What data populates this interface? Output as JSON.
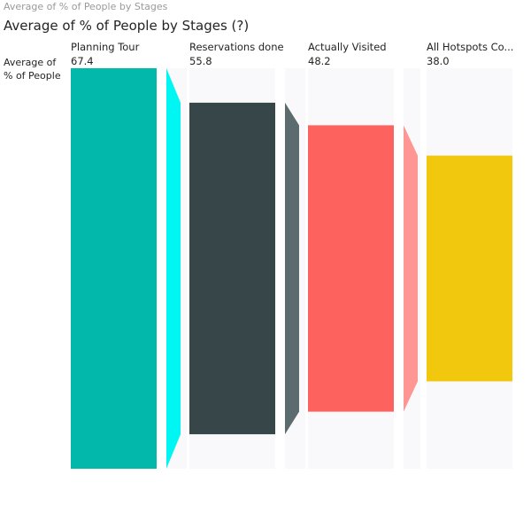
{
  "window_title": "Average of % of People by Stages",
  "chart_title": "Average of % of People by Stages (?)",
  "row_label": "Average of % of People",
  "chart_data": {
    "type": "bar",
    "variant": "funnel",
    "title": "Average of % of People by Stages (?)",
    "ylabel": "Average of % of People",
    "ylim": [
      0,
      67.4
    ],
    "categories": [
      "Planning Tour",
      "Reservations done",
      "Actually Visited",
      "All Hotspots Co..."
    ],
    "value_labels": [
      "67.4",
      "55.8",
      "48.2",
      "38.0"
    ],
    "series": [
      {
        "values": [
          67.4,
          55.8,
          48.2,
          38.0
        ]
      }
    ],
    "colors": [
      "#01B8AA",
      "#374649",
      "#FD625E",
      "#F2C80F"
    ],
    "connector_colors": [
      "#00F6F3",
      "#5C6B6E",
      "#FE9693",
      "#F2C80F"
    ],
    "track_color": "#F9F9FB"
  }
}
